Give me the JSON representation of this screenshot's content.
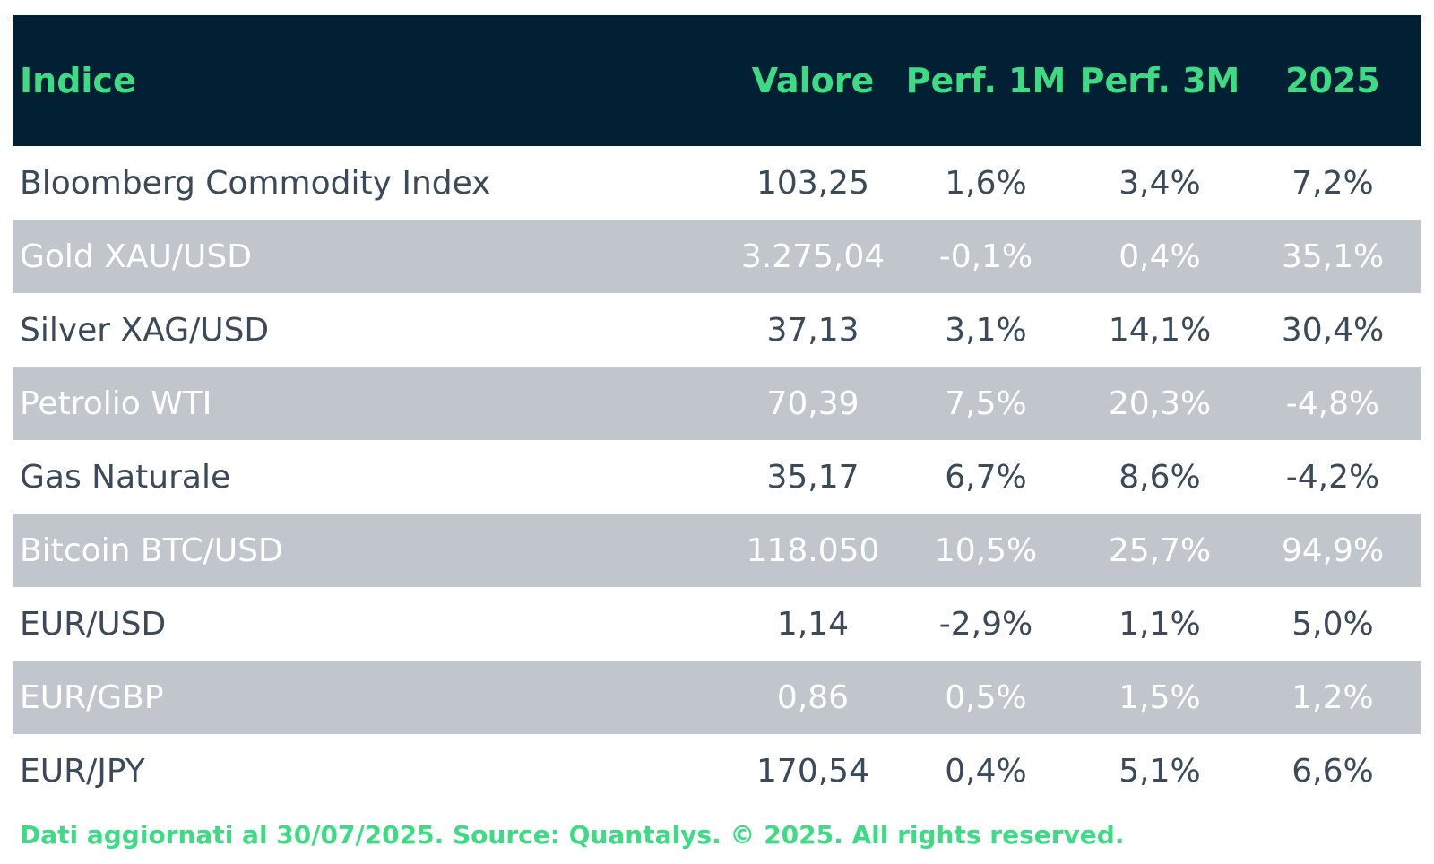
{
  "table": {
    "columns": [
      "Indice",
      "Valore",
      "Perf. 1M",
      "Perf. 3M",
      "2025"
    ],
    "rows": [
      [
        "Bloomberg Commodity Index",
        "103,25",
        "1,6%",
        "3,4%",
        "7,2%"
      ],
      [
        "Gold XAU/USD",
        "3.275,04",
        "-0,1%",
        "0,4%",
        "35,1%"
      ],
      [
        "Silver XAG/USD",
        "37,13",
        "3,1%",
        "14,1%",
        "30,4%"
      ],
      [
        "Petrolio WTI",
        "70,39",
        "7,5%",
        "20,3%",
        "-4,8%"
      ],
      [
        "Gas Naturale",
        "35,17",
        "6,7%",
        "8,6%",
        "-4,2%"
      ],
      [
        "Bitcoin BTC/USD",
        "118.050",
        "10,5%",
        "25,7%",
        "94,9%"
      ],
      [
        "EUR/USD",
        "1,14",
        "-2,9%",
        "1,1%",
        "5,0%"
      ],
      [
        "EUR/GBP",
        "0,86",
        "0,5%",
        "1,5%",
        "1,2%"
      ],
      [
        "EUR/JPY",
        "170,54",
        "0,4%",
        "5,1%",
        "6,6%"
      ]
    ]
  },
  "footer": "Dati aggiornati al 30/07/2025. Source: Quantalys. © 2025. All rights reserved."
}
